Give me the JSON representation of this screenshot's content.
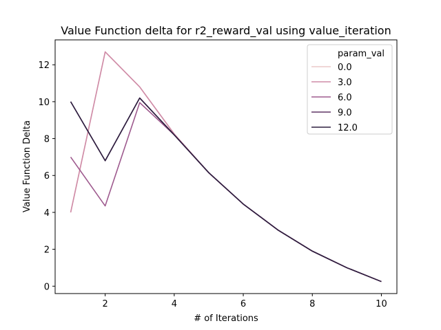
{
  "chart_data": {
    "type": "line",
    "title": "Value Function delta for r2_reward_val using value_iteration",
    "xlabel": "# of Iterations",
    "ylabel": "Value Function Delta",
    "xlim": [
      0.55,
      10.45
    ],
    "ylim": [
      -0.4,
      13.35
    ],
    "xticks": [
      2,
      4,
      6,
      8,
      10
    ],
    "yticks": [
      0,
      2,
      4,
      6,
      8,
      10,
      12
    ],
    "grid": false,
    "legend": {
      "title": "param_val",
      "placement": "top-right"
    },
    "x": [
      1,
      2,
      3,
      4,
      5,
      6,
      7,
      8,
      9,
      10
    ],
    "series": [
      {
        "name": "0.0",
        "color": "#ecc8c9",
        "values": [
          4.0,
          12.7,
          10.8,
          8.25,
          6.15,
          4.45,
          3.05,
          1.9,
          1.0,
          0.25
        ]
      },
      {
        "name": "3.0",
        "color": "#cf8ba7",
        "values": [
          4.0,
          12.7,
          10.8,
          8.25,
          6.15,
          4.45,
          3.05,
          1.9,
          1.0,
          0.25
        ]
      },
      {
        "name": "6.0",
        "color": "#9e5a8e",
        "values": [
          7.0,
          4.35,
          9.95,
          8.2,
          6.15,
          4.45,
          3.05,
          1.9,
          1.0,
          0.25
        ]
      },
      {
        "name": "9.0",
        "color": "#5e3465",
        "values": [
          10.0,
          6.8,
          10.2,
          8.2,
          6.15,
          4.45,
          3.05,
          1.9,
          1.0,
          0.25
        ]
      },
      {
        "name": "12.0",
        "color": "#2d1e3e",
        "values": [
          10.0,
          6.8,
          10.2,
          8.2,
          6.15,
          4.45,
          3.05,
          1.9,
          1.0,
          0.25
        ]
      }
    ]
  }
}
